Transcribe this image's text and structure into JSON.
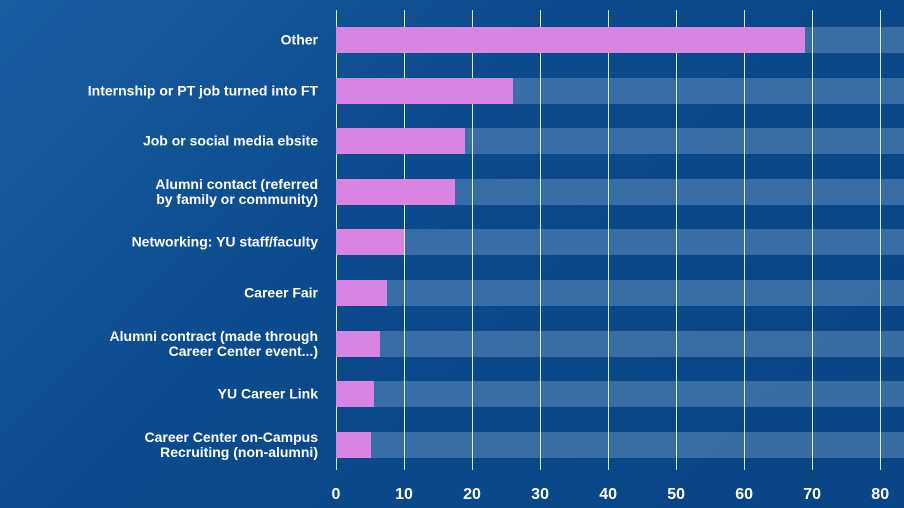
{
  "chart_data": {
    "type": "bar",
    "orientation": "horizontal",
    "categories": [
      "Other",
      "Internship or PT job turned into FT",
      "Job or social media ebsite",
      "Alumni contact (referred\nby family or community)",
      "Networking: YU staff/faculty",
      "Career Fair",
      "Alumni contract (made through\nCareer Center event...)",
      "YU Career Link",
      "Career Center on-Campus\nRecruiting (non-alumni)"
    ],
    "values": [
      69,
      26,
      19,
      17.5,
      10,
      7.5,
      6.5,
      5.6,
      5.1
    ],
    "color": "#d884e2",
    "xlim": [
      0,
      83.5
    ],
    "xticks": [
      0,
      10,
      20,
      30,
      40,
      50,
      60,
      70,
      80
    ],
    "grid": true
  }
}
